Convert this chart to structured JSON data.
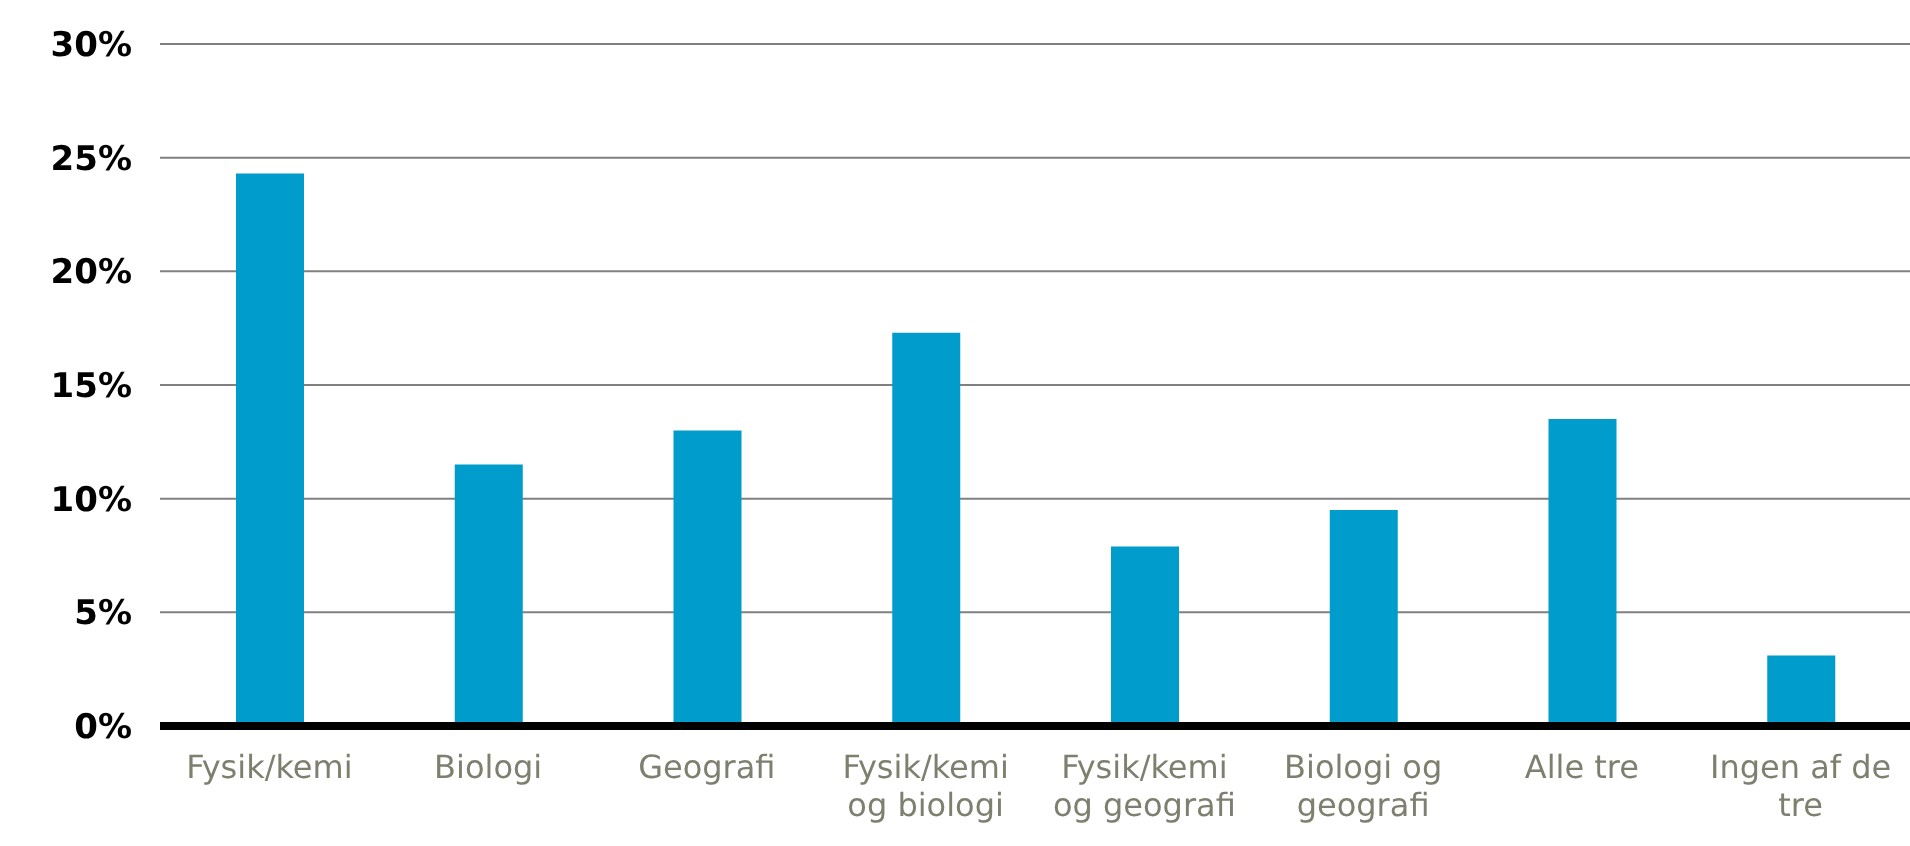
{
  "chart_data": {
    "type": "bar",
    "categories": [
      "Fysik/kemi",
      "Biologi",
      "Geografi",
      "Fysik/kemi og biologi",
      "Fysik/kemi og geografi",
      "Biologi og geografi",
      "Alle tre",
      "Ingen af de tre"
    ],
    "values": [
      24.3,
      11.5,
      13.0,
      17.3,
      7.9,
      9.5,
      13.5,
      3.1
    ],
    "color": "#009ccc",
    "ylim": [
      0,
      30
    ],
    "yticks": [
      {
        "value": 0,
        "label": "0%"
      },
      {
        "value": 5,
        "label": "5%"
      },
      {
        "value": 10,
        "label": "10%"
      },
      {
        "value": 15,
        "label": "15%"
      },
      {
        "value": 20,
        "label": "20%"
      },
      {
        "value": 25,
        "label": "25%"
      },
      {
        "value": 30,
        "label": "30%"
      }
    ],
    "grid": "y"
  }
}
